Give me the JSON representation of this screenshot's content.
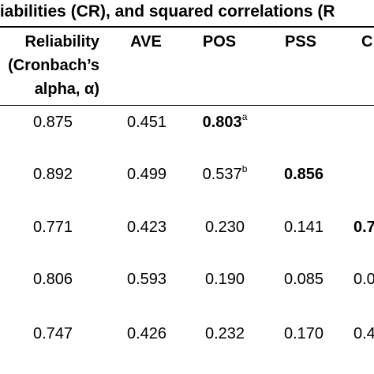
{
  "caption": "liabilities (CR), and squared correlations (R",
  "headers": {
    "reliability": [
      "Reliability",
      "(Cronbach’s",
      "alpha, α)"
    ],
    "ave": "AVE",
    "pos": "POS",
    "pss": "PSS",
    "c": "C"
  },
  "rows": [
    {
      "reliability": "0.875",
      "ave": "0.451",
      "pos": "0.803",
      "pos_sup": "a",
      "pss": "",
      "c": ""
    },
    {
      "reliability": "0.892",
      "ave": "0.499",
      "pos": "0.537",
      "pos_sup": "b",
      "pss": "0.856",
      "c": ""
    },
    {
      "reliability": "0.771",
      "ave": "0.423",
      "pos": "0.230",
      "pos_sup": "",
      "pss": "0.141",
      "c": "0.7"
    },
    {
      "reliability": "0.806",
      "ave": "0.593",
      "pos": "0.190",
      "pos_sup": "",
      "pss": "0.085",
      "c": "0.0"
    },
    {
      "reliability": "0.747",
      "ave": "0.426",
      "pos": "0.232",
      "pos_sup": "",
      "pss": "0.170",
      "c": "0.4"
    }
  ]
}
